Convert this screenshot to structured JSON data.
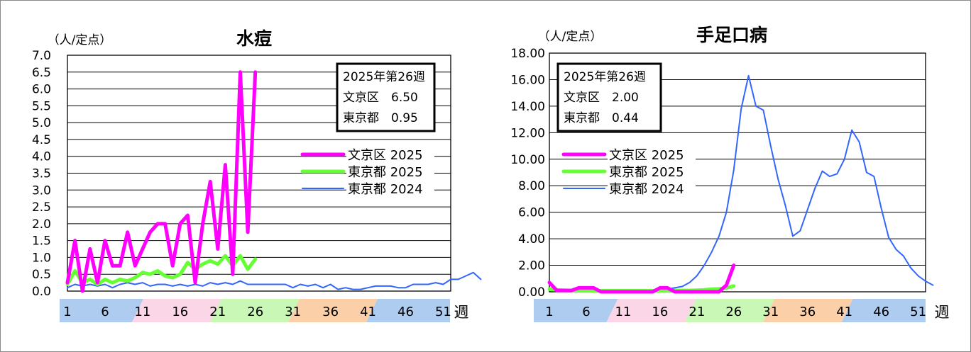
{
  "chart_data": [
    {
      "type": "line",
      "title": "水痘",
      "unit_label": "（人/定点）",
      "xlabel": "週",
      "x_ticks": [
        "1",
        "6",
        "11",
        "16",
        "21",
        "26",
        "31",
        "36",
        "41",
        "46",
        "51"
      ],
      "y_ticks": [
        "0.0",
        "0.5",
        "1.0",
        "1.5",
        "2.0",
        "2.5",
        "3.0",
        "3.5",
        "4.0",
        "4.5",
        "5.0",
        "5.5",
        "6.0",
        "6.5",
        "7.0"
      ],
      "ylim": [
        0,
        7
      ],
      "xlim": [
        1,
        52
      ],
      "grid": true,
      "legend_position": "right",
      "info_box": [
        "2025年第26週",
        "文京区　6.50",
        "東京都　0.95"
      ],
      "series": [
        {
          "name": "文京区 2025",
          "color": "#ff00ff",
          "width": 5,
          "values": [
            0.25,
            1.5,
            0.0,
            1.25,
            0.25,
            1.5,
            0.75,
            0.75,
            1.75,
            0.75,
            1.25,
            1.75,
            2.0,
            2.0,
            0.75,
            2.0,
            2.25,
            0.25,
            2.0,
            3.25,
            1.25,
            3.75,
            0.5,
            6.5,
            1.75,
            6.5
          ]
        },
        {
          "name": "東京都 2025",
          "color": "#66ff33",
          "width": 5,
          "values": [
            0.2,
            0.6,
            0.25,
            0.35,
            0.2,
            0.35,
            0.25,
            0.35,
            0.3,
            0.4,
            0.55,
            0.5,
            0.6,
            0.45,
            0.4,
            0.5,
            0.85,
            0.65,
            0.8,
            0.9,
            0.8,
            1.05,
            0.75,
            1.05,
            0.65,
            0.95
          ]
        },
        {
          "name": "東京都 2024",
          "color": "#3366ff",
          "width": 2,
          "values": [
            0.1,
            0.2,
            0.15,
            0.2,
            0.15,
            0.2,
            0.1,
            0.2,
            0.25,
            0.2,
            0.25,
            0.15,
            0.2,
            0.2,
            0.15,
            0.2,
            0.15,
            0.2,
            0.15,
            0.25,
            0.2,
            0.25,
            0.2,
            0.3,
            0.2,
            0.2,
            0.2,
            0.2,
            0.2,
            0.2,
            0.1,
            0.2,
            0.15,
            0.2,
            0.1,
            0.2,
            0.05,
            0.1,
            0.05,
            0.05,
            0.1,
            0.15,
            0.15,
            0.15,
            0.1,
            0.1,
            0.2,
            0.2,
            0.2,
            0.25,
            0.2,
            0.35,
            0.35,
            0.45,
            0.55,
            0.35
          ]
        }
      ]
    },
    {
      "type": "line",
      "title": "手足口病",
      "unit_label": "（人/定点）",
      "xlabel": "週",
      "x_ticks": [
        "1",
        "6",
        "11",
        "16",
        "21",
        "26",
        "31",
        "36",
        "41",
        "46",
        "51"
      ],
      "y_ticks": [
        "0.00",
        "2.00",
        "4.00",
        "6.00",
        "8.00",
        "10.00",
        "12.00",
        "14.00",
        "16.00",
        "18.00"
      ],
      "ylim": [
        0,
        18
      ],
      "xlim": [
        1,
        52
      ],
      "grid": true,
      "legend_position": "center-left",
      "info_box": [
        "2025年第26週",
        "文京区　2.00",
        "東京都　0.44"
      ],
      "series": [
        {
          "name": "文京区 2025",
          "color": "#ff00ff",
          "width": 5,
          "values": [
            0.7,
            0.1,
            0.1,
            0.1,
            0.3,
            0.3,
            0.3,
            0.0,
            0.0,
            0.0,
            0.0,
            0.0,
            0.0,
            0.0,
            0.0,
            0.3,
            0.3,
            0.0,
            0.0,
            0.0,
            0.0,
            0.0,
            0.0,
            0.0,
            0.5,
            2.0
          ]
        },
        {
          "name": "東京都 2025",
          "color": "#66ff33",
          "width": 5,
          "values": [
            0.2,
            0.15,
            0.12,
            0.1,
            0.1,
            0.1,
            0.08,
            0.08,
            0.08,
            0.08,
            0.08,
            0.08,
            0.08,
            0.08,
            0.08,
            0.08,
            0.1,
            0.1,
            0.1,
            0.1,
            0.12,
            0.15,
            0.2,
            0.22,
            0.3,
            0.44
          ]
        },
        {
          "name": "東京都 2024",
          "color": "#3366ff",
          "width": 2,
          "values": [
            0.1,
            0.1,
            0.1,
            0.1,
            0.1,
            0.1,
            0.1,
            0.1,
            0.1,
            0.1,
            0.1,
            0.1,
            0.15,
            0.1,
            0.15,
            0.15,
            0.2,
            0.3,
            0.4,
            0.7,
            1.2,
            2.0,
            3.0,
            4.2,
            6.0,
            9.2,
            13.8,
            16.3,
            14.0,
            13.7,
            11.0,
            8.5,
            6.5,
            4.2,
            4.6,
            6.2,
            7.8,
            9.1,
            8.7,
            8.9,
            10.0,
            12.2,
            11.3,
            9.0,
            8.7,
            6.3,
            4.1,
            3.2,
            2.7,
            1.8,
            1.2,
            0.8,
            0.5
          ]
        }
      ]
    }
  ]
}
